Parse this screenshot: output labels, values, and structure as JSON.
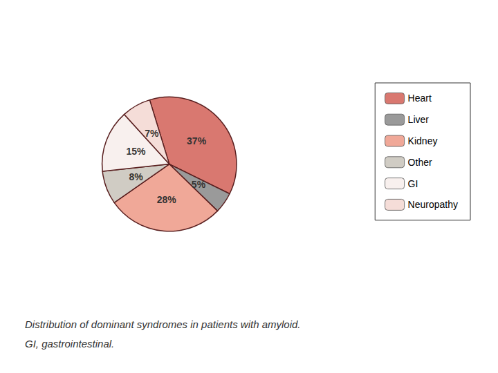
{
  "chart_data": {
    "type": "pie",
    "categories": [
      "Heart",
      "Liver",
      "Kidney",
      "Other",
      "GI",
      "Neuropathy"
    ],
    "values": [
      37,
      5,
      28,
      8,
      15,
      7
    ],
    "value_labels": [
      "37%",
      "5%",
      "28%",
      "8%",
      "15%",
      "7%"
    ],
    "colors": [
      "#d97870",
      "#9a9a9a",
      "#f0a898",
      "#d0ccc4",
      "#f8f0ee",
      "#f5ddd8"
    ],
    "data_labels": true,
    "legend": "right",
    "annotations": [
      "Distribution of dominant syndromes in patients with amyloid.",
      "GI, gastrointestinal."
    ]
  }
}
